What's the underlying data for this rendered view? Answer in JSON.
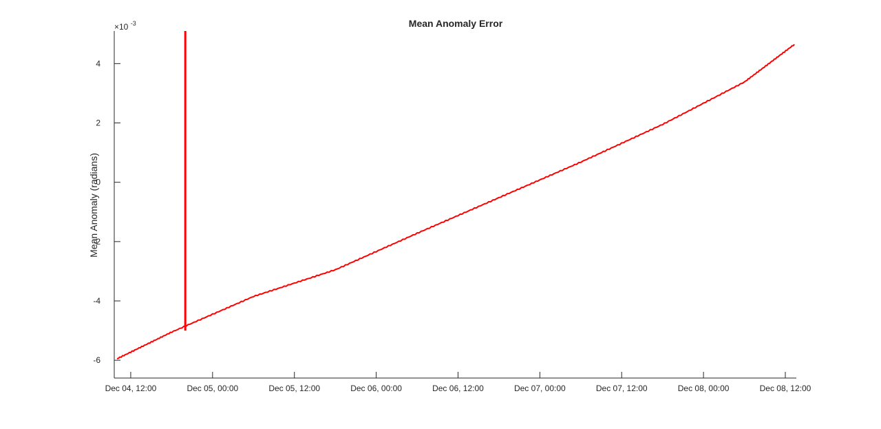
{
  "chart_data": {
    "type": "line",
    "title": "Mean Anomaly Error",
    "xlabel": "",
    "ylabel": "Mean Anomaly (radians)",
    "y_exponent_label": "×10",
    "y_exponent_power": "-3",
    "y_scale_multiplier": 0.001,
    "xlim": [
      "2017-12-04T09:35",
      "2017-12-08T13:37"
    ],
    "ylim": [
      -6.6,
      5.1
    ],
    "x_ticks": [
      {
        "x": "2017-12-04T12:00",
        "label": "Dec 04, 12:00"
      },
      {
        "x": "2017-12-05T00:00",
        "label": "Dec 05, 00:00"
      },
      {
        "x": "2017-12-05T12:00",
        "label": "Dec 05, 12:00"
      },
      {
        "x": "2017-12-06T00:00",
        "label": "Dec 06, 00:00"
      },
      {
        "x": "2017-12-06T12:00",
        "label": "Dec 06, 12:00"
      },
      {
        "x": "2017-12-07T00:00",
        "label": "Dec 07, 00:00"
      },
      {
        "x": "2017-12-07T12:00",
        "label": "Dec 07, 12:00"
      },
      {
        "x": "2017-12-08T00:00",
        "label": "Dec 08, 00:00"
      },
      {
        "x": "2017-12-08T12:00",
        "label": "Dec 08, 12:00"
      }
    ],
    "y_ticks": [
      {
        "y": -6,
        "label": "-6"
      },
      {
        "y": -4,
        "label": "-4"
      },
      {
        "y": -2,
        "label": "-2"
      },
      {
        "y": 0,
        "label": "0"
      },
      {
        "y": 2,
        "label": "2"
      },
      {
        "y": 4,
        "label": "4"
      }
    ],
    "grid": false,
    "series": [
      {
        "color": "#ff0000",
        "x": [
          "2017-12-04T10:00",
          "2017-12-04T18:00",
          "2017-12-05T06:00",
          "2017-12-05T18:00",
          "2017-12-06T06:00",
          "2017-12-06T18:00",
          "2017-12-07T06:00",
          "2017-12-07T18:00",
          "2017-12-08T06:00",
          "2017-12-08T13:20"
        ],
        "y": [
          -5.95,
          -5.05,
          -3.85,
          -2.95,
          -1.72,
          -0.52,
          0.68,
          1.95,
          3.38,
          4.65
        ]
      }
    ],
    "spike": {
      "x": "2017-12-04T20:00",
      "y_from": -5.0,
      "y_to": 5.1
    }
  }
}
